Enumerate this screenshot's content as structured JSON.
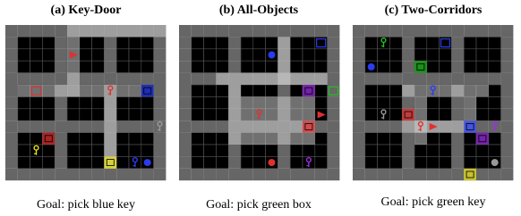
{
  "panels": [
    {
      "title": "(a) Key-Door",
      "goal": "Goal: pick blue key"
    },
    {
      "title": "(b) All-Objects",
      "goal": "Goal: pick green box"
    },
    {
      "title": "(c) Two-Corridors",
      "goal": "Goal: pick green key"
    }
  ]
}
